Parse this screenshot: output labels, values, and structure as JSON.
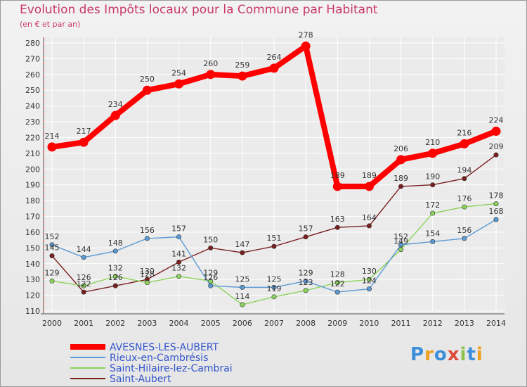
{
  "title": "Evolution des Impôts locaux pour la Commune par Habitant",
  "subtitle": "(en € et par an)",
  "logo": "Proxiti",
  "colors": {
    "title": "#c8386a",
    "axis": "#555555",
    "grid": "#ffffff",
    "legend_text": "#3355cc"
  },
  "chart_data": {
    "type": "line",
    "x": [
      "2000",
      "2001",
      "2002",
      "2003",
      "2004",
      "2005",
      "2006",
      "2007",
      "2008",
      "2009",
      "2010",
      "2011",
      "2012",
      "2013",
      "2014"
    ],
    "ylim": [
      110,
      280
    ],
    "yticks": [
      110,
      120,
      130,
      140,
      150,
      160,
      170,
      180,
      190,
      200,
      210,
      220,
      230,
      240,
      250,
      260,
      270,
      280
    ],
    "grid": true,
    "legend_position": "bottom-left",
    "series": [
      {
        "name": "AVESNES-LES-AUBERT",
        "color": "#ff0000",
        "values": [
          214,
          217,
          234,
          250,
          254,
          260,
          259,
          264,
          278,
          189,
          189,
          206,
          210,
          216,
          224
        ]
      },
      {
        "name": "Rieux-en-Cambrésis",
        "color": "#5b9bd5",
        "values": [
          152,
          144,
          148,
          156,
          157,
          126,
          125,
          125,
          129,
          122,
          124,
          152,
          154,
          156,
          168
        ]
      },
      {
        "name": "Saint-Hilaire-lez-Cambrai",
        "color": "#8bd35a",
        "values": [
          129,
          126,
          132,
          128,
          132,
          129,
          114,
          119,
          123,
          128,
          130,
          149,
          172,
          176,
          178
        ]
      },
      {
        "name": "Saint-Aubert",
        "color": "#7a1f1f",
        "values": [
          145,
          122,
          126,
          130,
          141,
          150,
          147,
          151,
          157,
          163,
          164,
          189,
          190,
          194,
          209
        ]
      }
    ]
  }
}
